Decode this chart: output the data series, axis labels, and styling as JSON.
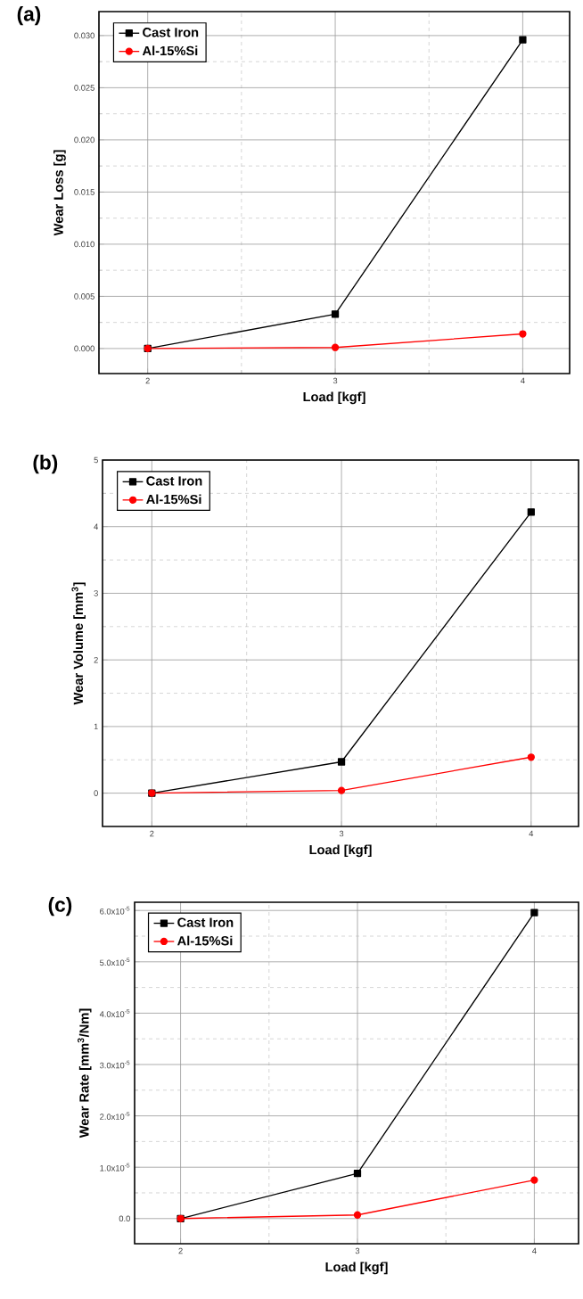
{
  "chart_data": [
    {
      "type": "line",
      "title": "(a)",
      "xlabel": "Load [kgf]",
      "ylabel": "Wear Loss [g]",
      "x": [
        2,
        3,
        4
      ],
      "series": [
        {
          "name": "Cast Iron",
          "color": "#000000",
          "marker": "square",
          "values": [
            0,
            0.0033,
            0.0296
          ]
        },
        {
          "name": "Al-15%Si",
          "color": "#ff0000",
          "marker": "circle",
          "values": [
            0,
            0.0001,
            0.0014
          ]
        }
      ],
      "xlim": [
        1.74,
        4.25
      ],
      "ylim": [
        -0.0024,
        0.0323
      ],
      "xticks": [
        2,
        3,
        4
      ],
      "yticks": [
        {
          "value": 0,
          "label": "0.000"
        },
        {
          "value": 0.005,
          "label": "0.005"
        },
        {
          "value": 0.01,
          "label": "0.010"
        },
        {
          "value": 0.015,
          "label": "0.015"
        },
        {
          "value": 0.02,
          "label": "0.020"
        },
        {
          "value": 0.025,
          "label": "0.025"
        },
        {
          "value": 0.03,
          "label": "0.030"
        }
      ],
      "grid": true,
      "legend": "top left"
    },
    {
      "type": "line",
      "title": "(b)",
      "xlabel": "Load [kgf]",
      "ylabel": "Wear Volume [mm$^{3}$]",
      "x": [
        2,
        3,
        4
      ],
      "series": [
        {
          "name": "Cast Iron",
          "color": "#000000",
          "marker": "square",
          "values": [
            0,
            0.47,
            4.22
          ]
        },
        {
          "name": "Al-15%Si",
          "color": "#ff0000",
          "marker": "circle",
          "values": [
            0,
            0.04,
            0.54
          ]
        }
      ],
      "xlim": [
        1.74,
        4.25
      ],
      "ylim": [
        -0.5,
        5
      ],
      "xticks": [
        2,
        3,
        4
      ],
      "yticks": [
        0,
        1,
        2,
        3,
        4,
        5
      ],
      "grid": true,
      "legend": "top left"
    },
    {
      "type": "line",
      "title": "(c)",
      "xlabel": "Load [kgf]",
      "ylabel": "Wear Rate [mm$^{3}$/Nm]",
      "x": [
        2,
        3,
        4
      ],
      "series": [
        {
          "name": "Cast Iron",
          "color": "#000000",
          "marker": "square",
          "values": [
            0,
            8.8e-06,
            5.96e-05
          ]
        },
        {
          "name": "Al-15%Si",
          "color": "#ff0000",
          "marker": "circle",
          "values": [
            0,
            7e-07,
            7.5e-06
          ]
        }
      ],
      "xlim": [
        1.74,
        4.25
      ],
      "ylim": [
        -4.9e-06,
        6.16e-05
      ],
      "xticks": [
        2,
        3,
        4
      ],
      "yticks": [
        {
          "value": 0,
          "label": "0.0"
        },
        {
          "value": 1e-05,
          "label": "1.0x10$^{-5}$"
        },
        {
          "value": 2e-05,
          "label": "2.0x10$^{-5}$"
        },
        {
          "value": 3e-05,
          "label": "3.0x10$^{-5}$"
        },
        {
          "value": 4e-05,
          "label": "4.0x10$^{-5}$"
        },
        {
          "value": 5e-05,
          "label": "5.0x10$^{-5}$"
        },
        {
          "value": 6e-05,
          "label": "6.0x10$^{-5}$"
        }
      ],
      "grid": true,
      "legend": "top left"
    }
  ]
}
